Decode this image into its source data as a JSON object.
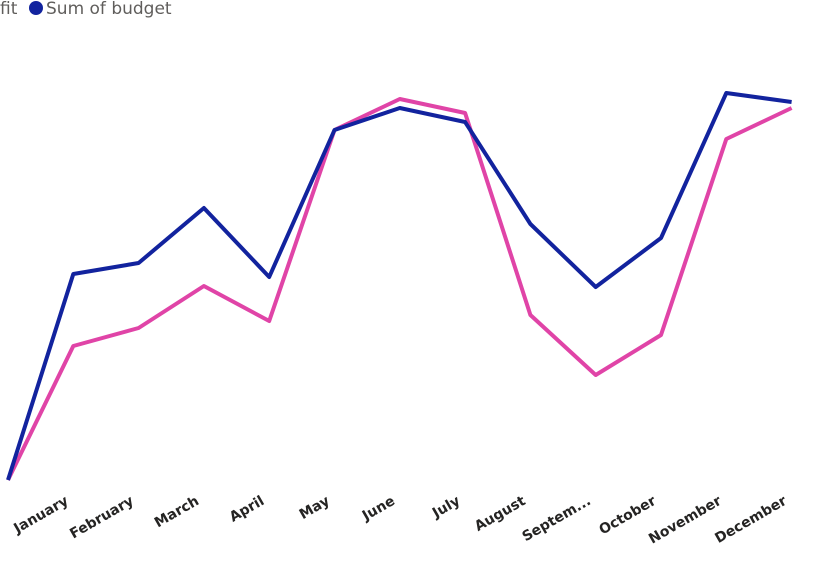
{
  "chart_data": {
    "type": "line",
    "categories": [
      null,
      "January",
      "February",
      "March",
      "April",
      "May",
      "June",
      "July",
      "August",
      "Septem...",
      "October",
      "November",
      "December"
    ],
    "series": [
      {
        "name": "fit",
        "color": "#e044a7",
        "values": [
          0,
          134,
          152,
          194,
          159,
          350,
          381,
          367,
          165,
          105,
          145,
          341,
          372
        ]
      },
      {
        "name": "Sum of budget",
        "color": "#12239e",
        "values": [
          0,
          206,
          217,
          272,
          203,
          350,
          372,
          358,
          256,
          193,
          242,
          387,
          378
        ]
      }
    ],
    "ylim": [
      0,
      400
    ]
  }
}
